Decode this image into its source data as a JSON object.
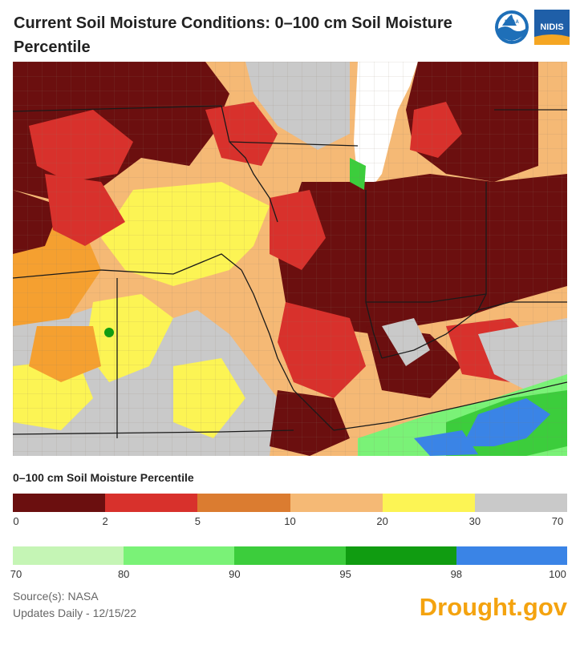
{
  "title": "Current Soil Moisture Conditions: 0–100 cm Soil Moisture Percentile",
  "logos": [
    {
      "text": "NOAA",
      "icon": "noaa-logo-icon"
    },
    {
      "text": "NIDIS",
      "icon": "nidis-logo-icon"
    }
  ],
  "legend": {
    "title": "0–100 cm Soil Moisture Percentile",
    "row1": {
      "colors": [
        "#6b0f0f",
        "#d8312c",
        "#db7c30",
        "#f5b975",
        "#fcf454",
        "#c9c9c9"
      ],
      "ticks": [
        "0",
        "2",
        "5",
        "10",
        "20",
        "30",
        "70"
      ]
    },
    "row2": {
      "colors": [
        "#c5f5b5",
        "#7af277",
        "#3ccd3c",
        "#109c11",
        "#3a84e6"
      ],
      "ticks": [
        "70",
        "80",
        "90",
        "95",
        "98",
        "100"
      ]
    }
  },
  "source": "Source(s): NASA",
  "updated": "Updates Daily - 12/15/22",
  "brand": "Drought.gov"
}
